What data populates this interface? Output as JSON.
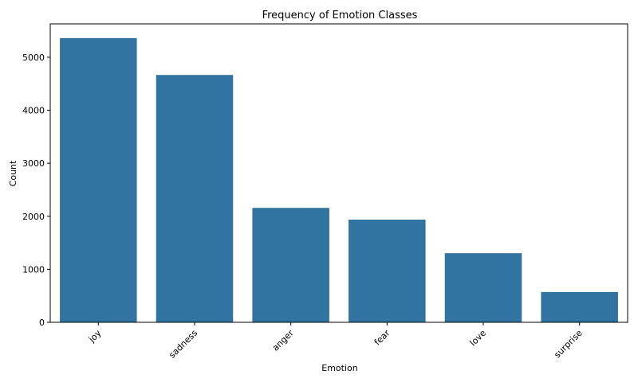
{
  "chart_data": {
    "type": "bar",
    "title": "Frequency of Emotion Classes",
    "xlabel": "Emotion",
    "ylabel": "Count",
    "categories": [
      "joy",
      "sadness",
      "anger",
      "fear",
      "love",
      "surprise"
    ],
    "values": [
      5362,
      4666,
      2159,
      1937,
      1304,
      572
    ],
    "ylim": [
      0,
      5630
    ],
    "yticks": [
      0,
      1000,
      2000,
      3000,
      4000,
      5000
    ],
    "ytick_labels": [
      "0",
      "1000",
      "2000",
      "3000",
      "4000",
      "5000"
    ],
    "bar_color": "#3274a1",
    "grid": false,
    "xtick_rotation_deg": 45
  }
}
